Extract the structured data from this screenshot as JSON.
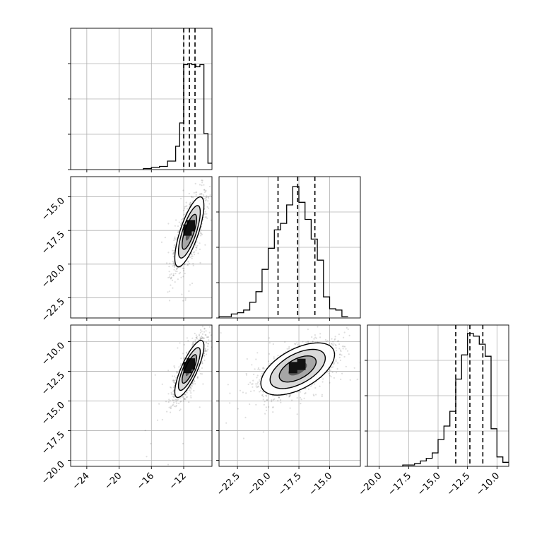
{
  "chart_data": {
    "type": "corner",
    "grid": true,
    "axes": [
      {
        "index": 0,
        "xlim": [
          -26,
          -8.5
        ],
        "ylim": [
          -24,
          -9
        ],
        "ticks": [
          -24,
          -20,
          -16,
          -12
        ]
      },
      {
        "index": 1,
        "xlim": [
          -24.0,
          -12.5
        ],
        "ylim": [
          -24.0,
          -13.5
        ],
        "ticks": [
          -22.5,
          -20.0,
          -17.5,
          -15.0
        ]
      },
      {
        "index": 2,
        "xlim": [
          -21.0,
          -9.0
        ],
        "ylim": [
          -20.5,
          -8.6
        ],
        "ticks": [
          -20.0,
          -17.5,
          -15.0,
          -12.5,
          -10.0
        ]
      }
    ],
    "histograms": [
      {
        "param": 0,
        "bin_edges": [
          -17,
          -16,
          -15,
          -14,
          -13,
          -12.5,
          -12,
          -11.5,
          -11,
          -10.5,
          -10,
          -9.5,
          -9,
          -8.5
        ],
        "counts": [
          0.01,
          0.02,
          0.03,
          0.08,
          0.22,
          0.44,
          0.99,
          1.0,
          0.99,
          0.97,
          0.99,
          0.34,
          0.06
        ],
        "quantiles": [
          -12.0,
          -11.3,
          -10.6
        ]
      },
      {
        "param": 1,
        "bin_edges": [
          -24.0,
          -23.0,
          -22.5,
          -22.0,
          -21.5,
          -21.0,
          -20.5,
          -20.0,
          -19.5,
          -19.0,
          -18.5,
          -18.0,
          -17.5,
          -17.0,
          -16.5,
          -16.0,
          -15.5,
          -15.0,
          -14.5,
          -14.0,
          -13.5
        ],
        "counts": [
          0.01,
          0.03,
          0.04,
          0.06,
          0.12,
          0.2,
          0.37,
          0.53,
          0.67,
          0.72,
          0.86,
          1.0,
          0.88,
          0.75,
          0.6,
          0.44,
          0.16,
          0.07,
          0.06,
          0.01
        ],
        "quantiles": [
          -19.2,
          -17.6,
          -16.2
        ]
      },
      {
        "param": 2,
        "bin_edges": [
          -18.0,
          -17.0,
          -16.5,
          -16.0,
          -15.5,
          -15.0,
          -14.5,
          -14.0,
          -13.5,
          -13.0,
          -12.5,
          -12.0,
          -11.5,
          -11.0,
          -10.5,
          -10.0,
          -9.5,
          -9.0
        ],
        "counts": [
          0.01,
          0.02,
          0.04,
          0.06,
          0.1,
          0.2,
          0.3,
          0.41,
          0.65,
          0.83,
          0.99,
          0.97,
          0.91,
          0.82,
          0.28,
          0.07,
          0.03
        ],
        "quantiles": [
          -13.5,
          -12.3,
          -11.2
        ]
      }
    ],
    "scatter_panels": [
      {
        "x_param": 0,
        "y_param": 1,
        "center": [
          -11.3,
          -17.6
        ],
        "sd": [
          0.9,
          1.3
        ],
        "rho": 0.75
      },
      {
        "x_param": 0,
        "y_param": 2,
        "center": [
          -11.3,
          -12.3
        ],
        "sd": [
          0.9,
          1.2
        ],
        "rho": 0.8
      },
      {
        "x_param": 1,
        "y_param": 2,
        "center": [
          -17.6,
          -12.3
        ],
        "sd": [
          1.5,
          1.1
        ],
        "rho": 0.55
      }
    ]
  }
}
